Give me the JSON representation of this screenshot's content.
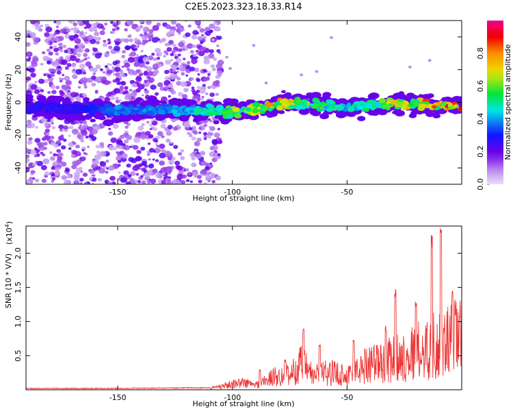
{
  "title": "C2E5.2023.323.18.33.R14",
  "chart_data": [
    {
      "type": "heatmap",
      "xlabel": "Height of straight line (km)",
      "ylabel": "Frequency (Hz)",
      "xlim": [
        -190,
        0
      ],
      "ylim": [
        -50,
        50
      ],
      "xticks": [
        -150,
        -100,
        -50
      ],
      "yticks": [
        -40,
        -20,
        0,
        20,
        40
      ],
      "colorbar": {
        "label": "Normalized spectral amplitude",
        "range": [
          0.0,
          1.0
        ],
        "ticks": [
          "0.0",
          "0.2",
          "0.4",
          "0.6",
          "0.8"
        ],
        "colormap": "rainbow"
      },
      "ridge_line": {
        "x": [
          -190,
          -170,
          -150,
          -130,
          -110,
          -100,
          -90,
          -80,
          -70,
          -60,
          -50,
          -40,
          -30,
          -20,
          -10,
          0
        ],
        "y": [
          -3,
          -4,
          -4.5,
          -4.5,
          -5,
          -6,
          -4,
          -1,
          0,
          -2,
          -3,
          -2,
          -1,
          -1,
          -2,
          -2
        ]
      },
      "peak_amplitude": [
        0.25,
        0.25,
        0.4,
        0.4,
        0.55,
        0.65,
        0.75,
        0.85,
        0.7,
        0.6,
        0.5,
        0.6,
        0.75,
        0.8,
        0.95,
        1.0
      ],
      "noise_region_x": [
        -190,
        -105
      ]
    },
    {
      "type": "line",
      "xlabel": "Height of straight line (km)",
      "ylabel": "SNR (10 * V/V)",
      "y_multiplier": "(x10",
      "y_multiplier_exp": "4",
      "y_multiplier_close": ")",
      "xlim": [
        -190,
        0
      ],
      "ylim": [
        0,
        2.4
      ],
      "xticks": [
        -150,
        -100,
        -50
      ],
      "yticks": [
        "0.5",
        "1.0",
        "1.5",
        "2.0"
      ],
      "color": "#ee3333",
      "series": [
        {
          "x": [
            -190,
            -150,
            -110,
            -100,
            -95,
            -90,
            -85,
            -80,
            -75,
            -70,
            -65,
            -60,
            -55,
            -50,
            -45,
            -40,
            -35,
            -30,
            -25,
            -20,
            -15,
            -10,
            -5,
            0
          ],
          "y": [
            0.02,
            0.02,
            0.03,
            0.12,
            0.15,
            0.1,
            0.2,
            0.3,
            0.3,
            0.55,
            0.3,
            0.35,
            0.35,
            0.3,
            0.4,
            0.6,
            0.55,
            0.65,
            0.7,
            0.8,
            0.85,
            1.0,
            1.0,
            1.2
          ],
          "spikes": [
            [
              -88,
              0.3
            ],
            [
              -77,
              0.45
            ],
            [
              -69,
              0.9
            ],
            [
              -62,
              0.7
            ],
            [
              -47,
              0.75
            ],
            [
              -33,
              0.95
            ],
            [
              -29,
              1.5
            ],
            [
              -20,
              1.3
            ],
            [
              -13,
              2.3
            ],
            [
              -9,
              2.4
            ],
            [
              -4,
              1.45
            ]
          ]
        }
      ]
    }
  ]
}
